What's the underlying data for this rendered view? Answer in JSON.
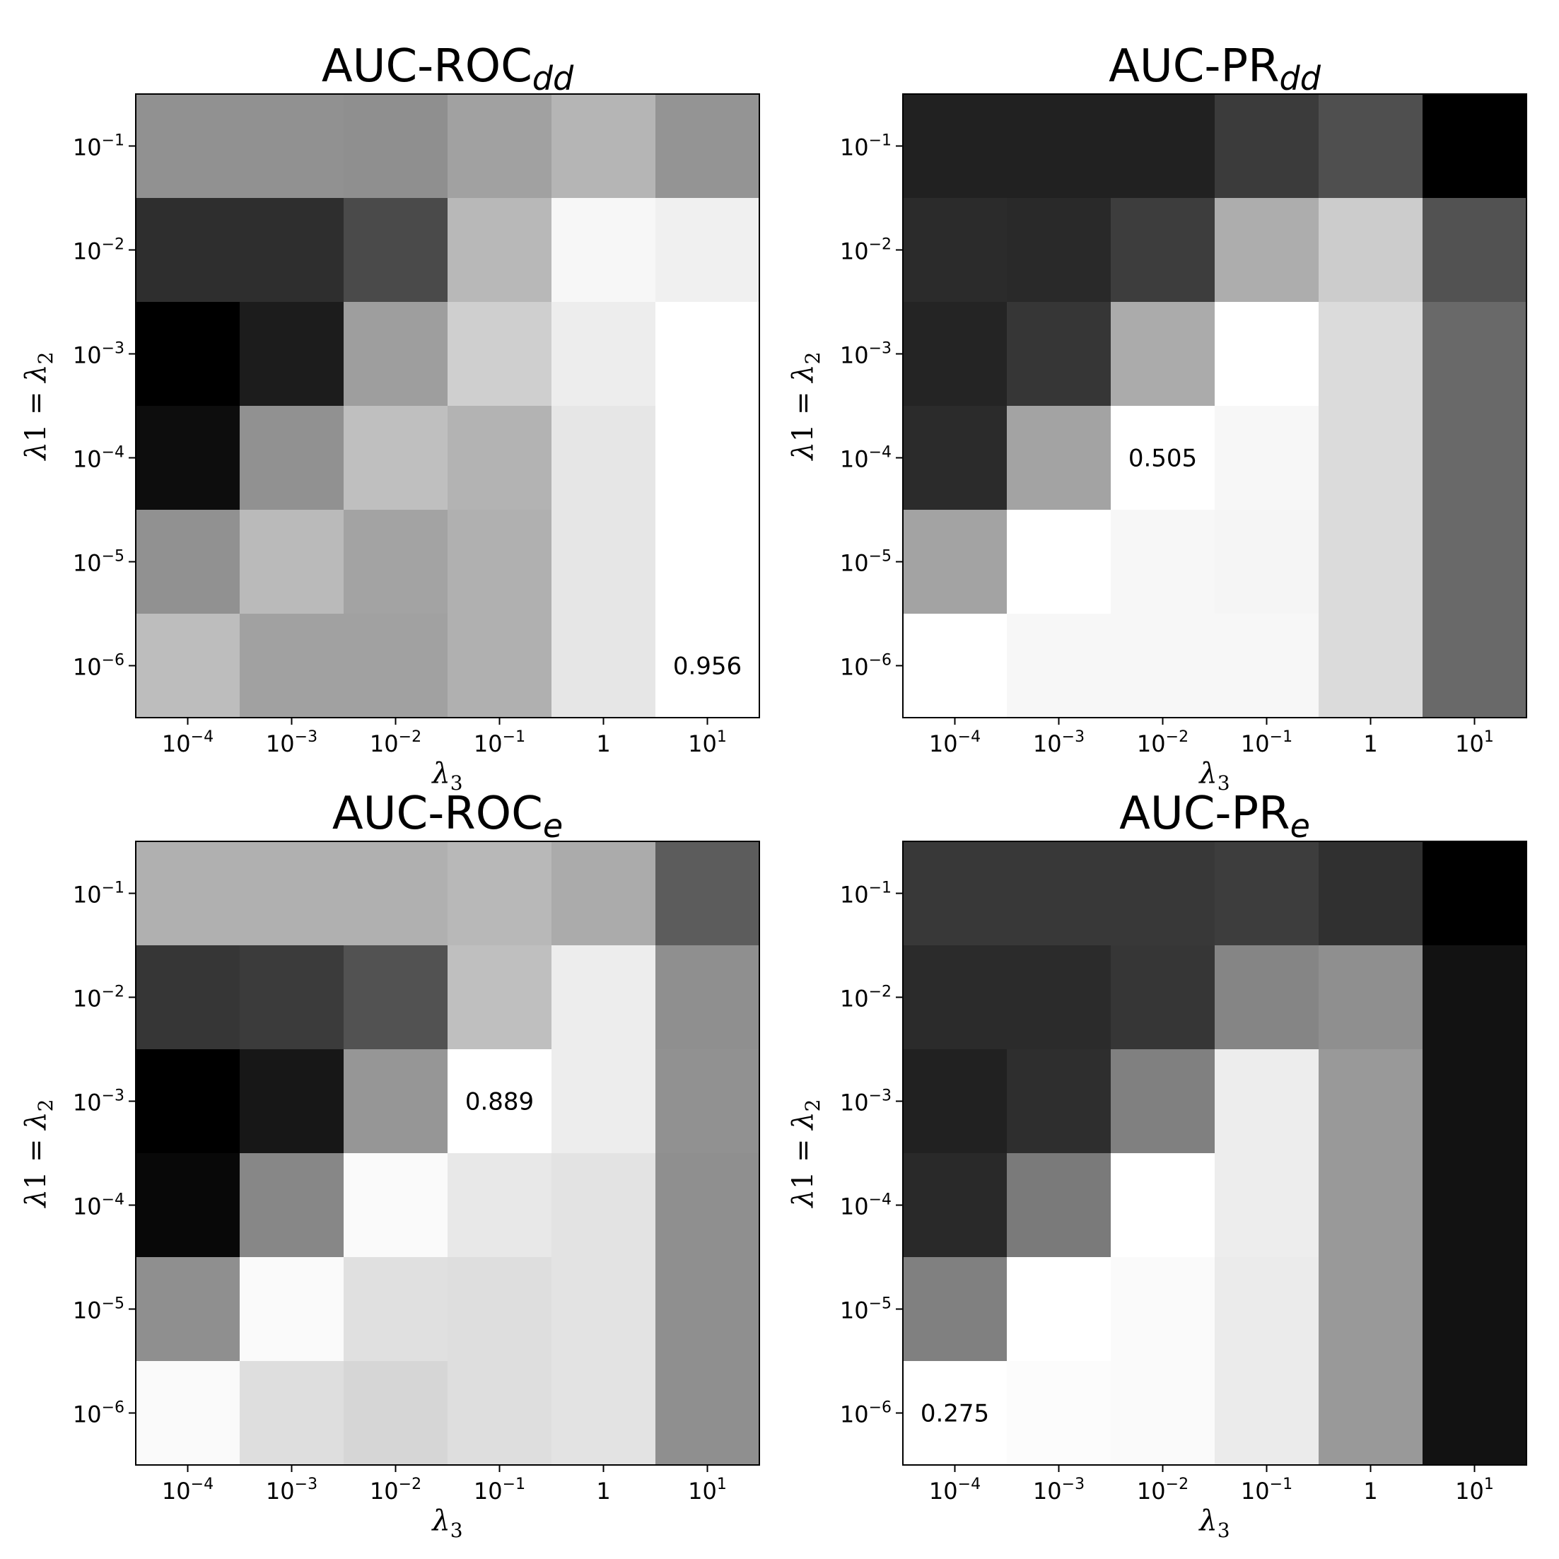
{
  "chart_data": [
    {
      "type": "heatmap",
      "title": "AUC-ROC",
      "title_subscript": "dd",
      "xlabel": "λ",
      "xlabel_subscript": "3",
      "ylabel_parts": [
        "λ",
        "1 = ",
        "λ",
        "2"
      ],
      "x_categories": [
        "1e-4",
        "1e-3",
        "1e-2",
        "1e-1",
        "1",
        "1e1"
      ],
      "y_categories": [
        "1e-1",
        "1e-2",
        "1e-3",
        "1e-4",
        "1e-5",
        "1e-6"
      ],
      "colormap": "grayscale (dark = low, light = high)",
      "relative_level": [
        [
          0.57,
          0.57,
          0.56,
          0.63,
          0.71,
          0.58
        ],
        [
          0.18,
          0.18,
          0.29,
          0.72,
          0.97,
          0.94
        ],
        [
          0.0,
          0.11,
          0.62,
          0.81,
          0.93,
          1.0
        ],
        [
          0.05,
          0.57,
          0.75,
          0.7,
          0.9,
          1.0
        ],
        [
          0.57,
          0.73,
          0.64,
          0.69,
          0.9,
          1.0
        ],
        [
          0.74,
          0.63,
          0.63,
          0.69,
          0.9,
          1.0
        ]
      ],
      "annotation": {
        "row": 5,
        "col": 5,
        "text": "0.956",
        "color": "#000000"
      }
    },
    {
      "type": "heatmap",
      "title": "AUC-PR",
      "title_subscript": "dd",
      "xlabel": "λ",
      "xlabel_subscript": "3",
      "ylabel_parts": [
        "λ",
        "1 = ",
        "λ",
        "2"
      ],
      "x_categories": [
        "1e-4",
        "1e-3",
        "1e-2",
        "1e-1",
        "1",
        "1e1"
      ],
      "y_categories": [
        "1e-1",
        "1e-2",
        "1e-3",
        "1e-4",
        "1e-5",
        "1e-6"
      ],
      "colormap": "grayscale (dark = low, light = high)",
      "relative_level": [
        [
          0.13,
          0.13,
          0.13,
          0.23,
          0.31,
          0.0
        ],
        [
          0.17,
          0.16,
          0.24,
          0.68,
          0.8,
          0.32
        ],
        [
          0.14,
          0.21,
          0.67,
          1.0,
          0.86,
          0.41
        ],
        [
          0.17,
          0.64,
          1.0,
          0.97,
          0.86,
          0.41
        ],
        [
          0.64,
          1.0,
          0.97,
          0.96,
          0.86,
          0.41
        ],
        [
          1.0,
          0.97,
          0.97,
          0.97,
          0.86,
          0.41
        ]
      ],
      "annotation": {
        "row": 3,
        "col": 2,
        "text": "0.505",
        "color": "#000000"
      }
    },
    {
      "type": "heatmap",
      "title": "AUC-ROC",
      "title_subscript": "e",
      "xlabel": "λ",
      "xlabel_subscript": "3",
      "ylabel_parts": [
        "λ",
        "1 = ",
        "λ",
        "2"
      ],
      "x_categories": [
        "1e-4",
        "1e-3",
        "1e-2",
        "1e-1",
        "1",
        "1e1"
      ],
      "y_categories": [
        "1e-1",
        "1e-2",
        "1e-3",
        "1e-4",
        "1e-5",
        "1e-6"
      ],
      "colormap": "grayscale (dark = low, light = high)",
      "relative_level": [
        [
          0.69,
          0.69,
          0.69,
          0.72,
          0.67,
          0.36
        ],
        [
          0.21,
          0.23,
          0.32,
          0.75,
          0.93,
          0.56
        ],
        [
          0.0,
          0.09,
          0.59,
          1.0,
          0.93,
          0.57
        ],
        [
          0.03,
          0.53,
          0.98,
          0.91,
          0.89,
          0.56
        ],
        [
          0.56,
          0.98,
          0.88,
          0.87,
          0.89,
          0.56
        ],
        [
          0.98,
          0.87,
          0.84,
          0.87,
          0.89,
          0.56
        ]
      ],
      "annotation": {
        "row": 2,
        "col": 3,
        "text": "0.889",
        "color": "#000000"
      }
    },
    {
      "type": "heatmap",
      "title": "AUC-PR",
      "title_subscript": "e",
      "xlabel": "λ",
      "xlabel_subscript": "3",
      "ylabel_parts": [
        "λ",
        "1 = ",
        "λ",
        "2"
      ],
      "x_categories": [
        "1e-4",
        "1e-3",
        "1e-2",
        "1e-1",
        "1",
        "1e1"
      ],
      "y_categories": [
        "1e-1",
        "1e-2",
        "1e-3",
        "1e-4",
        "1e-5",
        "1e-6"
      ],
      "colormap": "grayscale (dark = low, light = high)",
      "relative_level": [
        [
          0.22,
          0.22,
          0.22,
          0.24,
          0.19,
          0.0
        ],
        [
          0.17,
          0.17,
          0.21,
          0.52,
          0.56,
          0.07
        ],
        [
          0.13,
          0.18,
          0.5,
          0.93,
          0.6,
          0.07
        ],
        [
          0.16,
          0.48,
          1.0,
          0.93,
          0.6,
          0.07
        ],
        [
          0.5,
          1.0,
          0.98,
          0.92,
          0.6,
          0.07
        ],
        [
          1.0,
          0.99,
          0.98,
          0.92,
          0.6,
          0.07
        ]
      ],
      "annotation": {
        "row": 5,
        "col": 0,
        "text": "0.275",
        "color": "#000000"
      }
    }
  ]
}
